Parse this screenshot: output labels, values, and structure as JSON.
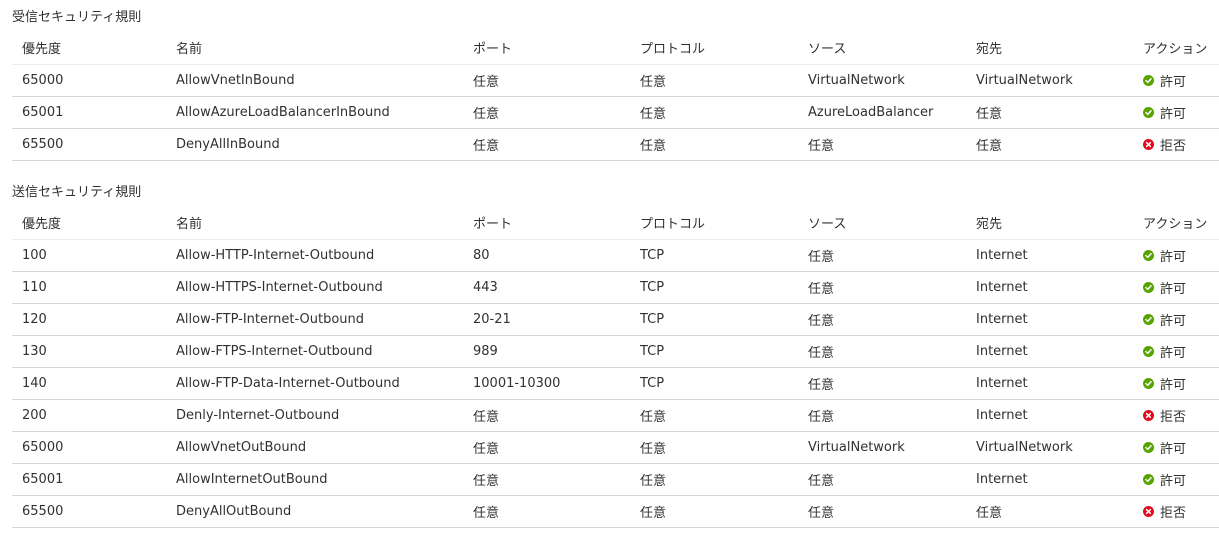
{
  "colors": {
    "allow": "#57a300",
    "deny": "#e00b1c"
  },
  "inbound": {
    "title": "受信セキュリティ規則",
    "headers": [
      "優先度",
      "名前",
      "ポート",
      "プロトコル",
      "ソース",
      "宛先",
      "アクション"
    ],
    "rows": [
      {
        "priority": "65000",
        "name": "AllowVnetInBound",
        "port": "任意",
        "protocol": "任意",
        "source": "VirtualNetwork",
        "destination": "VirtualNetwork",
        "action": "許可",
        "action_icon": "check-circle-icon",
        "action_type": "allow"
      },
      {
        "priority": "65001",
        "name": "AllowAzureLoadBalancerInBound",
        "port": "任意",
        "protocol": "任意",
        "source": "AzureLoadBalancer",
        "destination": "任意",
        "action": "許可",
        "action_icon": "check-circle-icon",
        "action_type": "allow"
      },
      {
        "priority": "65500",
        "name": "DenyAllInBound",
        "port": "任意",
        "protocol": "任意",
        "source": "任意",
        "destination": "任意",
        "action": "拒否",
        "action_icon": "x-circle-icon",
        "action_type": "deny"
      }
    ]
  },
  "outbound": {
    "title": "送信セキュリティ規則",
    "headers": [
      "優先度",
      "名前",
      "ポート",
      "プロトコル",
      "ソース",
      "宛先",
      "アクション"
    ],
    "rows": [
      {
        "priority": "100",
        "name": "Allow-HTTP-Internet-Outbound",
        "port": "80",
        "protocol": "TCP",
        "source": "任意",
        "destination": "Internet",
        "action": "許可",
        "action_icon": "check-circle-icon",
        "action_type": "allow"
      },
      {
        "priority": "110",
        "name": "Allow-HTTPS-Internet-Outbound",
        "port": "443",
        "protocol": "TCP",
        "source": "任意",
        "destination": "Internet",
        "action": "許可",
        "action_icon": "check-circle-icon",
        "action_type": "allow"
      },
      {
        "priority": "120",
        "name": "Allow-FTP-Internet-Outbound",
        "port": "20-21",
        "protocol": "TCP",
        "source": "任意",
        "destination": "Internet",
        "action": "許可",
        "action_icon": "check-circle-icon",
        "action_type": "allow"
      },
      {
        "priority": "130",
        "name": "Allow-FTPS-Internet-Outbound",
        "port": "989",
        "protocol": "TCP",
        "source": "任意",
        "destination": "Internet",
        "action": "許可",
        "action_icon": "check-circle-icon",
        "action_type": "allow"
      },
      {
        "priority": "140",
        "name": "Allow-FTP-Data-Internet-Outbound",
        "port": "10001-10300",
        "protocol": "TCP",
        "source": "任意",
        "destination": "Internet",
        "action": "許可",
        "action_icon": "check-circle-icon",
        "action_type": "allow"
      },
      {
        "priority": "200",
        "name": "Denly-Internet-Outbound",
        "port": "任意",
        "protocol": "任意",
        "source": "任意",
        "destination": "Internet",
        "action": "拒否",
        "action_icon": "x-circle-icon",
        "action_type": "deny"
      },
      {
        "priority": "65000",
        "name": "AllowVnetOutBound",
        "port": "任意",
        "protocol": "任意",
        "source": "VirtualNetwork",
        "destination": "VirtualNetwork",
        "action": "許可",
        "action_icon": "check-circle-icon",
        "action_type": "allow"
      },
      {
        "priority": "65001",
        "name": "AllowInternetOutBound",
        "port": "任意",
        "protocol": "任意",
        "source": "任意",
        "destination": "Internet",
        "action": "許可",
        "action_icon": "check-circle-icon",
        "action_type": "allow"
      },
      {
        "priority": "65500",
        "name": "DenyAllOutBound",
        "port": "任意",
        "protocol": "任意",
        "source": "任意",
        "destination": "任意",
        "action": "拒否",
        "action_icon": "x-circle-icon",
        "action_type": "deny"
      }
    ]
  }
}
